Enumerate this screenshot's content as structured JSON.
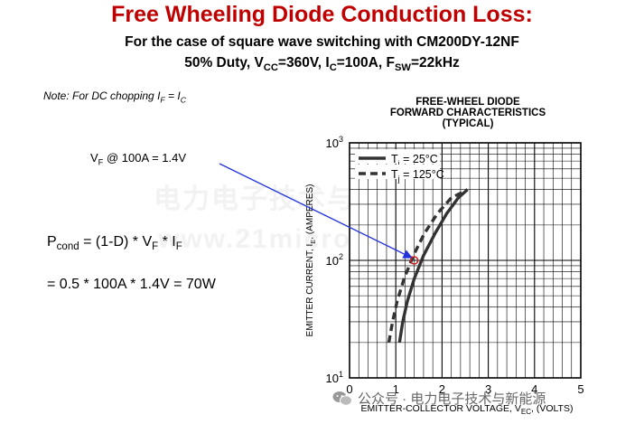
{
  "header": {
    "title": "Free Wheeling Diode Conduction Loss:",
    "subtitle_line1": "For the case of square wave switching with CM200DY-12NF",
    "duty": "50% Duty, ",
    "vcc_sym": "V",
    "vcc_sub": "CC",
    "vcc_val": "=360V, ",
    "ic_sym": "I",
    "ic_sub": "C",
    "ic_val": "=100A, ",
    "fsw_sym": "F",
    "fsw_sub": "SW",
    "fsw_val": "=22kHz"
  },
  "note": {
    "prefix": "Note: For DC chopping ",
    "if_sym": "I",
    "if_sub": "F",
    "eq": " = ",
    "ic_sym": "I",
    "ic_sub": "C"
  },
  "vf_label": {
    "sym": "V",
    "sub": "F",
    "rest": " @ 100A = 1.4V"
  },
  "equation": {
    "p_sym": "P",
    "p_sub": "cond",
    "mid": " = (1-D) * V",
    "vf_sub": "F",
    "star": " * I",
    "if_sub": "F",
    "line2": "= 0.5 * 100A * 1.4V = 70W"
  },
  "watermark": {
    "line1": "电力电子技术与新能源",
    "line2": "www.21micro-grid.com",
    "footer": "公众号 · 电力电子技术与新能源"
  },
  "chart_data": {
    "type": "line",
    "title": "FREE-WHEEL DIODE",
    "title_line2": "FORWARD CHARACTERISTICS",
    "title_line3": "(TYPICAL)",
    "xlabel_pre": "EMITTER-COLLECTOR VOLTAGE, V",
    "xlabel_sub": "EC",
    "xlabel_post": ", (VOLTS)",
    "ylabel_pre": "EMITTER CURRENT, I",
    "ylabel_sub": "E",
    "ylabel_post": ", (AMPERES)",
    "xlim": [
      0,
      5
    ],
    "ylim": [
      10,
      1000
    ],
    "y_scale": "log",
    "grid": true,
    "legend_position": "top-left",
    "x_ticks": [
      "0",
      "1",
      "2",
      "3",
      "4",
      "5"
    ],
    "y_ticks": [
      {
        "base": "10",
        "exp": "1"
      },
      {
        "base": "10",
        "exp": "2"
      },
      {
        "base": "10",
        "exp": "3"
      }
    ],
    "series": [
      {
        "name_sym": "T",
        "name_sub": "j",
        "name_val": " = 25°C",
        "style": "solid",
        "color": "#333333",
        "x": [
          1.08,
          1.15,
          1.25,
          1.4,
          1.6,
          1.85,
          2.1,
          2.35,
          2.55
        ],
        "y": [
          20,
          30,
          45,
          70,
          110,
          170,
          250,
          340,
          400
        ]
      },
      {
        "name_sym": "T",
        "name_sub": "j",
        "name_val": " = 125°C",
        "style": "dashed",
        "color": "#333333",
        "x": [
          0.85,
          0.93,
          1.03,
          1.18,
          1.38,
          1.62,
          1.9,
          2.2,
          2.55
        ],
        "y": [
          20,
          30,
          45,
          70,
          110,
          170,
          250,
          340,
          400
        ]
      }
    ],
    "annotation": {
      "point": {
        "x": 1.4,
        "y": 100
      },
      "arrow_color": "#2233dd",
      "marker_color": "#cc2222"
    }
  }
}
